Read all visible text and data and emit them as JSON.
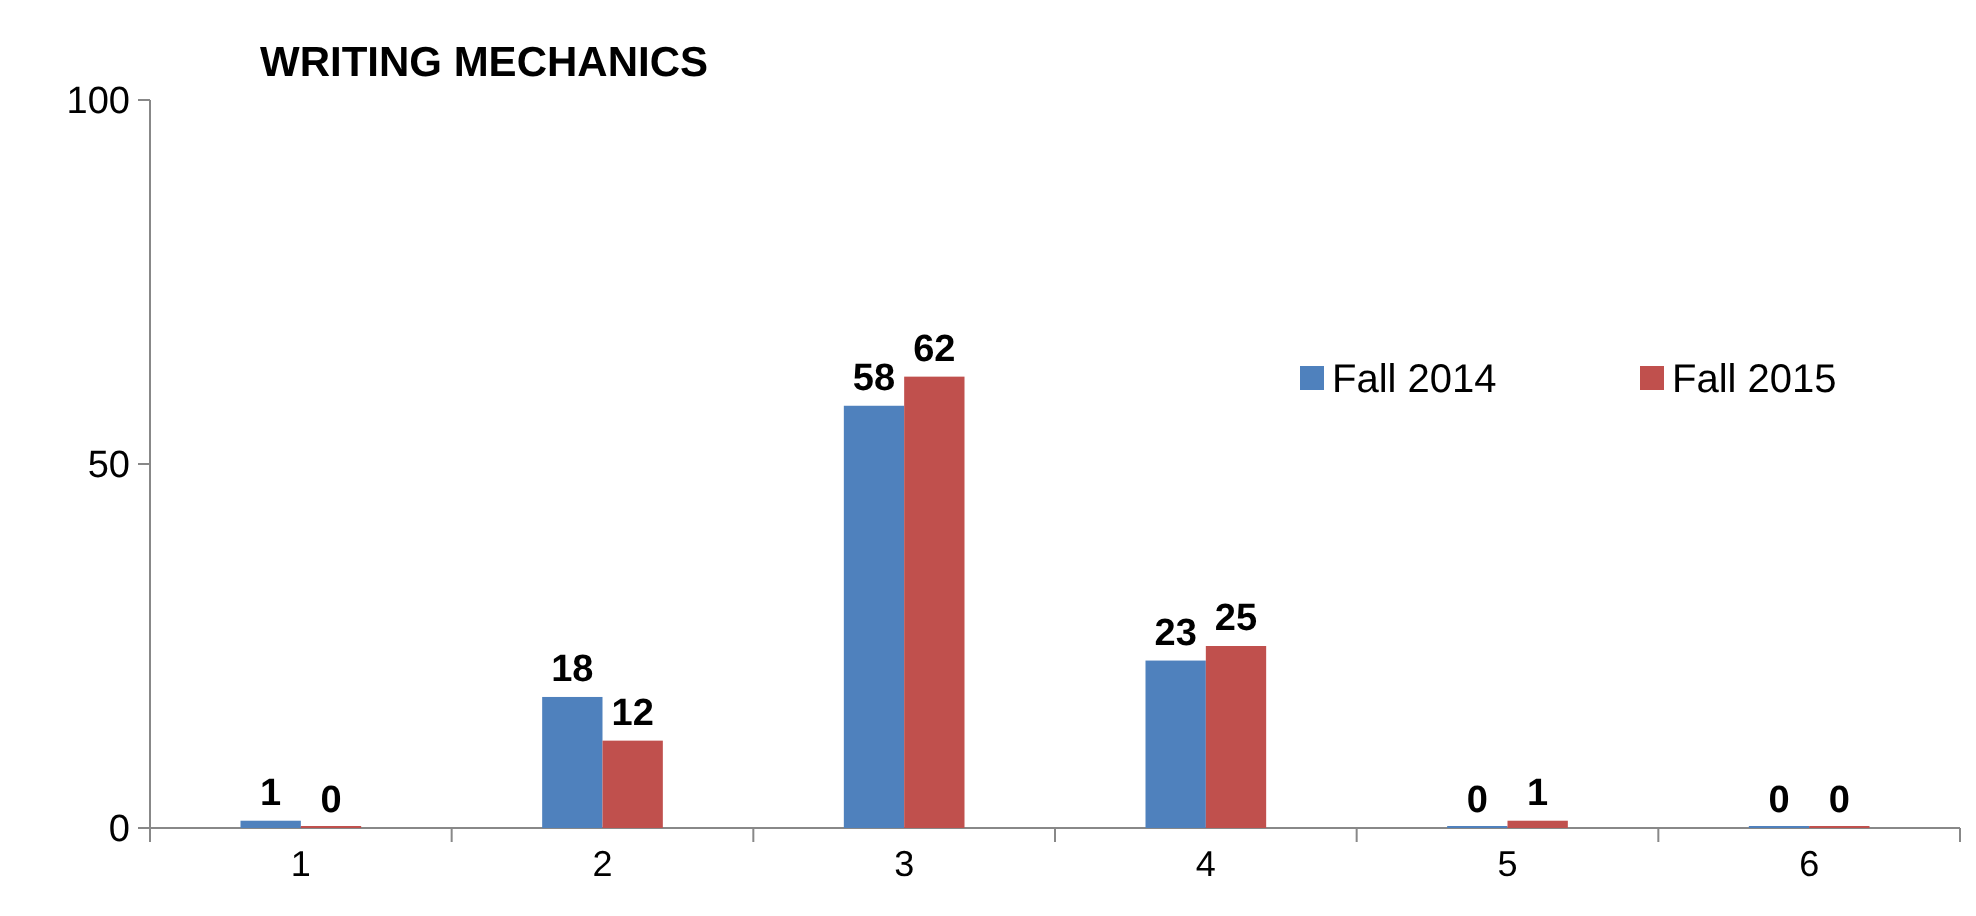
{
  "chart_data": {
    "type": "bar",
    "title": "WRITING MECHANICS",
    "categories": [
      "1",
      "2",
      "3",
      "4",
      "5",
      "6"
    ],
    "series": [
      {
        "name": "Fall 2014",
        "color": "#4f81bd",
        "values": [
          1,
          18,
          58,
          23,
          0,
          0
        ]
      },
      {
        "name": "Fall 2015",
        "color": "#c0504d",
        "values": [
          0,
          12,
          62,
          25,
          1,
          0
        ]
      }
    ],
    "ylim": [
      0,
      100
    ],
    "yticks": [
      0,
      50,
      100
    ],
    "grid": false,
    "legend": "right",
    "data_labels": true
  }
}
